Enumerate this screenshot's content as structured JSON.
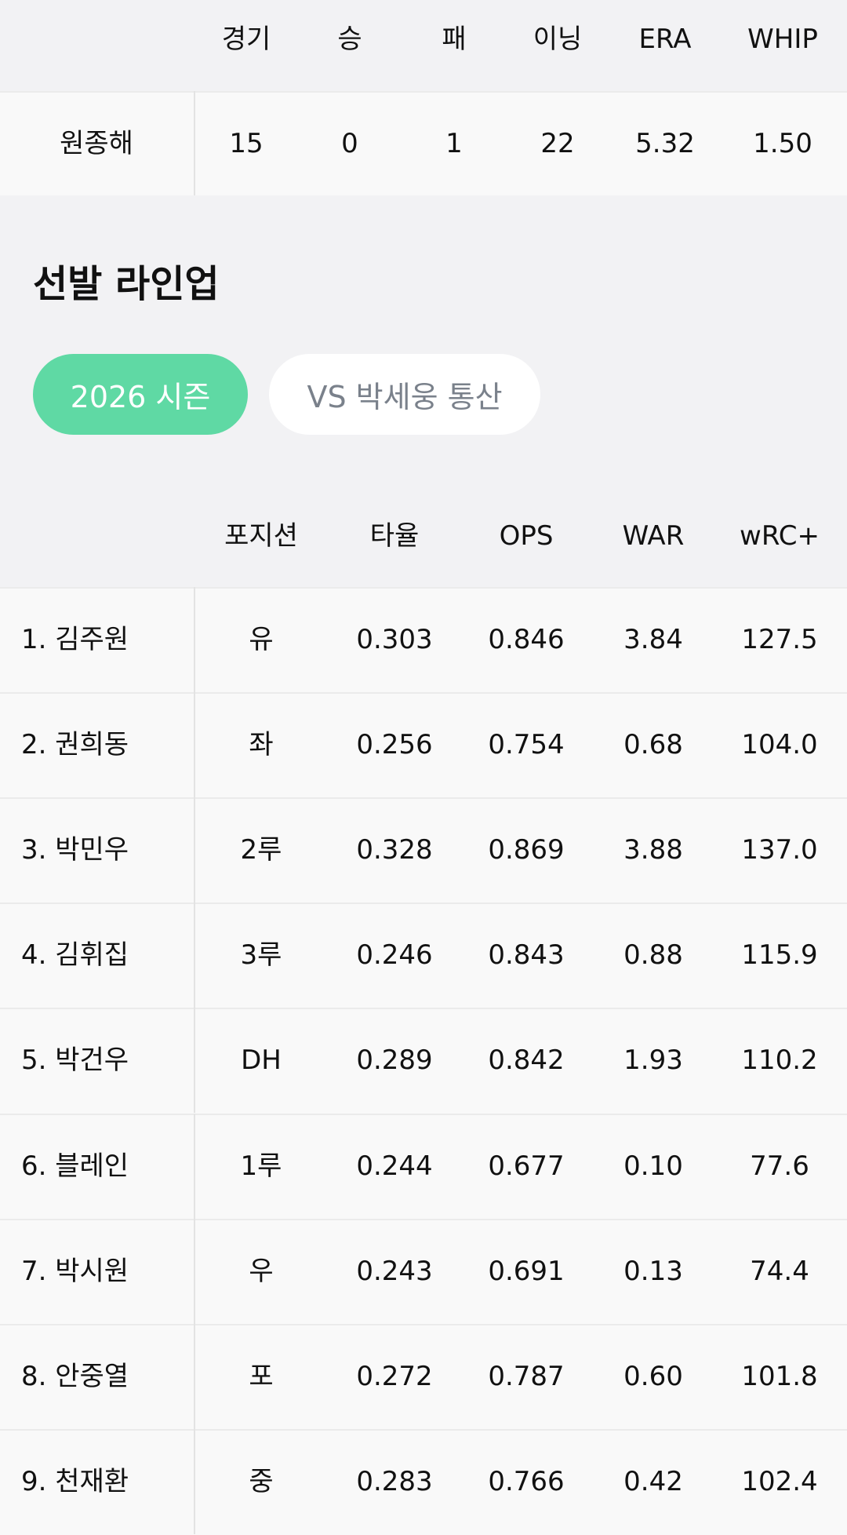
{
  "pitcher_table": {
    "headers": [
      "경기",
      "승",
      "패",
      "이닝",
      "ERA",
      "WHIP"
    ],
    "rows": [
      [
        "원종해",
        "15",
        "0",
        "1",
        "22",
        "5.32",
        "1.50"
      ]
    ]
  },
  "section_title": "선발 라인업",
  "tabs": [
    "2026 시즌",
    "VS 박세웅 통산"
  ],
  "lineup_table": {
    "headers": [
      "포지션",
      "타율",
      "OPS",
      "WAR",
      "wRC+"
    ],
    "rows": [
      [
        "1. 김주원",
        "유",
        "0.303",
        "0.846",
        "3.84",
        "127.5"
      ],
      [
        "2. 권희동",
        "좌",
        "0.256",
        "0.754",
        "0.68",
        "104.0"
      ],
      [
        "3. 박민우",
        "2루",
        "0.328",
        "0.869",
        "3.88",
        "137.0"
      ],
      [
        "4. 김휘집",
        "3루",
        "0.246",
        "0.843",
        "0.88",
        "115.9"
      ],
      [
        "5. 박건우",
        "DH",
        "0.289",
        "0.842",
        "1.93",
        "110.2"
      ],
      [
        "6. 블레인",
        "1루",
        "0.244",
        "0.677",
        "0.10",
        "77.6"
      ],
      [
        "7. 박시원",
        "우",
        "0.243",
        "0.691",
        "0.13",
        "74.4"
      ],
      [
        "8. 안중열",
        "포",
        "0.272",
        "0.787",
        "0.60",
        "101.8"
      ],
      [
        "9. 천재환",
        "중",
        "0.283",
        "0.766",
        "0.42",
        "102.4"
      ]
    ]
  }
}
